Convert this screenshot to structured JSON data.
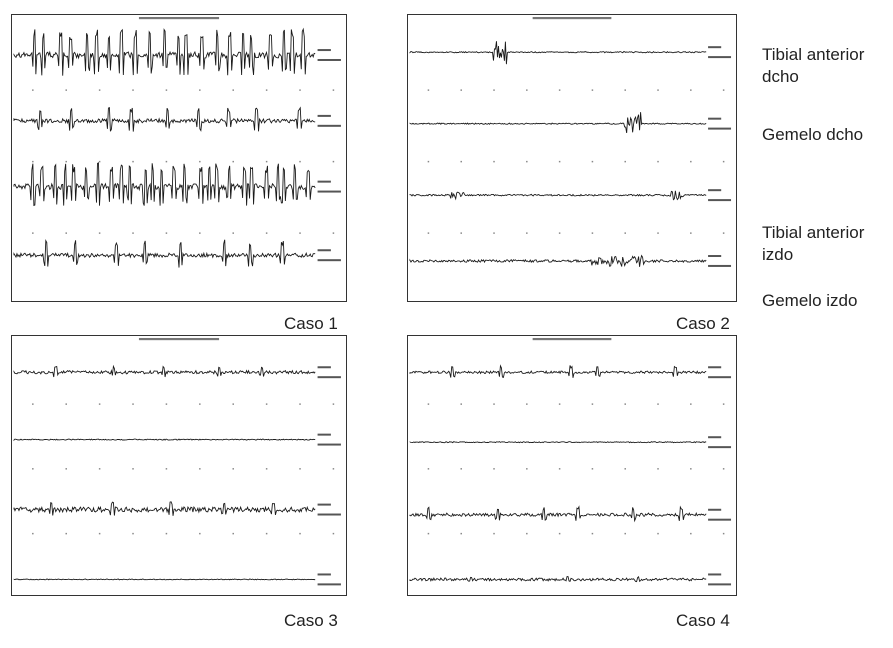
{
  "channel_labels": [
    "Tibial anterior dcho",
    "Gemelo dcho",
    "Tibial anterior izdo",
    "Gemelo izdo"
  ],
  "panels": [
    {
      "caption": "Caso 1"
    },
    {
      "caption": "Caso 2"
    },
    {
      "caption": "Caso 3"
    },
    {
      "caption": "Caso 4"
    }
  ]
}
